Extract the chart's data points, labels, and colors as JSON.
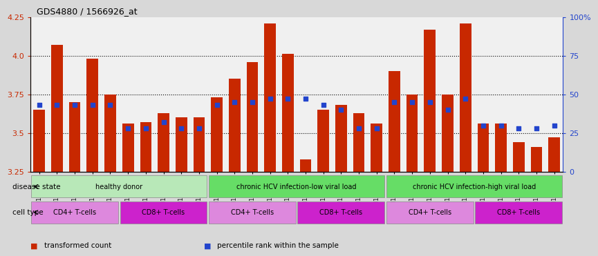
{
  "title": "GDS4880 / 1566926_at",
  "samples": [
    "GSM1210739",
    "GSM1210740",
    "GSM1210741",
    "GSM1210742",
    "GSM1210743",
    "GSM1210754",
    "GSM1210755",
    "GSM1210756",
    "GSM1210757",
    "GSM1210758",
    "GSM1210745",
    "GSM1210750",
    "GSM1210751",
    "GSM1210752",
    "GSM1210753",
    "GSM1210760",
    "GSM1210765",
    "GSM1210766",
    "GSM1210767",
    "GSM1210768",
    "GSM1210744",
    "GSM1210746",
    "GSM1210747",
    "GSM1210748",
    "GSM1210749",
    "GSM1210759",
    "GSM1210761",
    "GSM1210762",
    "GSM1210763",
    "GSM1210764"
  ],
  "bar_values": [
    3.65,
    4.07,
    3.7,
    3.98,
    3.75,
    3.56,
    3.57,
    3.63,
    3.6,
    3.6,
    3.73,
    3.85,
    3.96,
    4.21,
    4.01,
    3.33,
    3.65,
    3.68,
    3.63,
    3.56,
    3.9,
    3.75,
    4.17,
    3.75,
    4.21,
    3.56,
    3.56,
    3.44,
    3.41,
    3.47
  ],
  "percentile_values": [
    43,
    43,
    43,
    43,
    43,
    28,
    28,
    32,
    28,
    28,
    43,
    45,
    45,
    47,
    47,
    47,
    43,
    40,
    28,
    28,
    45,
    45,
    45,
    40,
    47,
    30,
    30,
    28,
    28,
    30
  ],
  "ymin": 3.25,
  "ymax": 4.25,
  "yticks": [
    3.25,
    3.5,
    3.75,
    4.0,
    4.25
  ],
  "bar_color": "#c82800",
  "percentile_color": "#2244cc",
  "background_color": "#d8d8d8",
  "plot_bg_color": "#ffffff",
  "disease_groups": [
    {
      "label": "healthy donor",
      "start": 0,
      "end": 9,
      "color": "#b8e8b8"
    },
    {
      "label": "chronic HCV infection-low viral load",
      "start": 10,
      "end": 19,
      "color": "#66dd66"
    },
    {
      "label": "chronic HCV infection-high viral load",
      "start": 20,
      "end": 29,
      "color": "#66dd66"
    }
  ],
  "cell_type_groups": [
    {
      "label": "CD4+ T-cells",
      "start": 0,
      "end": 4,
      "color": "#dd88dd"
    },
    {
      "label": "CD8+ T-cells",
      "start": 5,
      "end": 9,
      "color": "#cc22cc"
    },
    {
      "label": "CD4+ T-cells",
      "start": 10,
      "end": 14,
      "color": "#dd88dd"
    },
    {
      "label": "CD8+ T-cells",
      "start": 15,
      "end": 19,
      "color": "#cc22cc"
    },
    {
      "label": "CD4+ T-cells",
      "start": 20,
      "end": 24,
      "color": "#dd88dd"
    },
    {
      "label": "CD8+ T-cells",
      "start": 25,
      "end": 29,
      "color": "#cc22cc"
    }
  ],
  "disease_state_label": "disease state",
  "cell_type_label": "cell type",
  "legend_items": [
    {
      "label": "transformed count",
      "color": "#c82800"
    },
    {
      "label": "percentile rank within the sample",
      "color": "#2244cc"
    }
  ]
}
